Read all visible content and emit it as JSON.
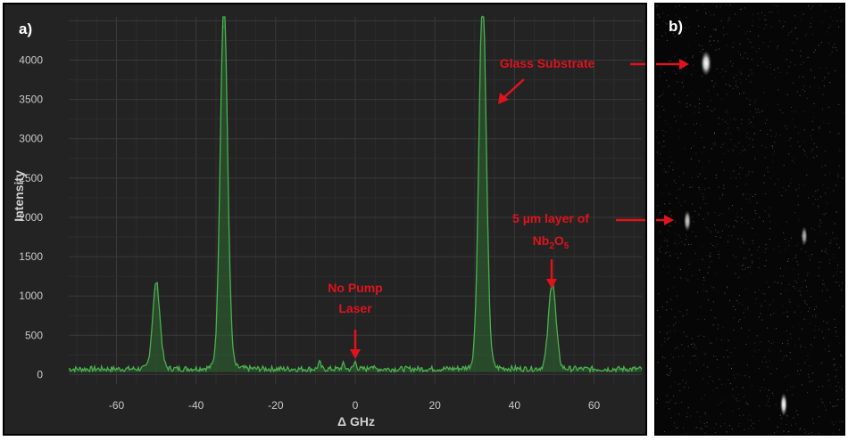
{
  "panels": {
    "a_label": "a)",
    "b_label": "b)"
  },
  "chart_data": {
    "type": "line",
    "title": "",
    "xlabel": "Δ GHz",
    "ylabel": "Intensity",
    "xlim": [
      -72,
      72
    ],
    "ylim": [
      -120,
      4550
    ],
    "xticks": [
      -60,
      -40,
      -20,
      0,
      20,
      40,
      60
    ],
    "yticks": [
      0,
      500,
      1000,
      1500,
      2000,
      2500,
      3000,
      3500,
      4000
    ],
    "grid": true,
    "background": "#232323",
    "line_color": "#4caf50",
    "fill_color": "#2e6b31",
    "baseline": 70,
    "peaks": [
      {
        "x": -50,
        "y": 1090
      },
      {
        "x": -33,
        "y": 4420
      },
      {
        "x": 32,
        "y": 4560
      },
      {
        "x": 49.5,
        "y": 1100
      }
    ],
    "small_bumps": [
      {
        "x": -9,
        "y": 150
      },
      {
        "x": -3,
        "y": 130
      },
      {
        "x": 0,
        "y": 160
      },
      {
        "x": 4,
        "y": 125
      }
    ]
  },
  "annotations": {
    "no_pump_line1": "No Pump",
    "no_pump_line2": "Laser",
    "glass_substrate": "Glass Substrate",
    "layer_line1": "5 µm layer of",
    "layer_nb": "Nb",
    "layer_sub1": "2",
    "layer_o": "O",
    "layer_sub2": "5",
    "annotation_color": "#e0131d"
  }
}
